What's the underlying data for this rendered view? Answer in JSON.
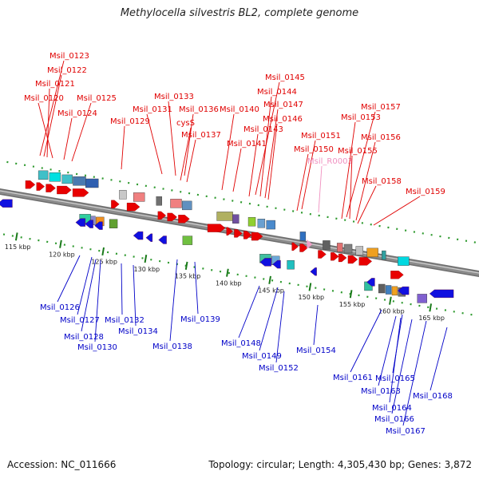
{
  "title": "Methylocella silvestris BL2, complete genome",
  "footer": {
    "accession": "Accession: NC_011666",
    "summary": "Topology: circular; Length: 4,305,430 bp; Genes: 3,872"
  },
  "colors": {
    "forward_label": "#e00000",
    "reverse_label": "#0000c8",
    "rna_label": "#f090c0",
    "forward_gene": "#e80000",
    "reverse_gene": "#1010e0",
    "backbone": "#8c8c8c",
    "ring_dots": "#2f9a2f"
  },
  "scale_labels": [
    "115 kbp",
    "120 kbp",
    "125 kbp",
    "130 kbp",
    "135 kbp",
    "140 kbp",
    "145 kbp",
    "150 kbp",
    "155 kbp",
    "160 kbp",
    "165 kbp"
  ],
  "top_labels": [
    "Msil_0123",
    "Msil_0122",
    "Msil_0121",
    "Msil_0120",
    "Msil_0125",
    "Msil_0124",
    "Msil_0133",
    "Msil_0131",
    "Msil_0136",
    "Msil_0129",
    "cysS",
    "Msil_0137",
    "Msil_0140",
    "Msil_0141",
    "Msil_0145",
    "Msil_0144",
    "Msil_0147",
    "Msil_0146",
    "Msil_0143",
    "Msil_0151",
    "Msil_0150",
    "Msil_R0003",
    "Msil_0157",
    "Msil_0153",
    "Msil_0156",
    "Msil_0155",
    "Msil_0158",
    "Msil_0159"
  ],
  "bottom_labels": [
    "Msil_0126",
    "Msil_0127",
    "Msil_0128",
    "Msil_0130",
    "Msil_0132",
    "Msil_0134",
    "Msil_0138",
    "Msil_0139",
    "Msil_0148",
    "Msil_0149",
    "Msil_0152",
    "Msil_0154",
    "Msil_0161",
    "Msil_0165",
    "Msil_0163",
    "Msil_0164",
    "Msil_0166",
    "Msil_0167",
    "Msil_0168"
  ]
}
